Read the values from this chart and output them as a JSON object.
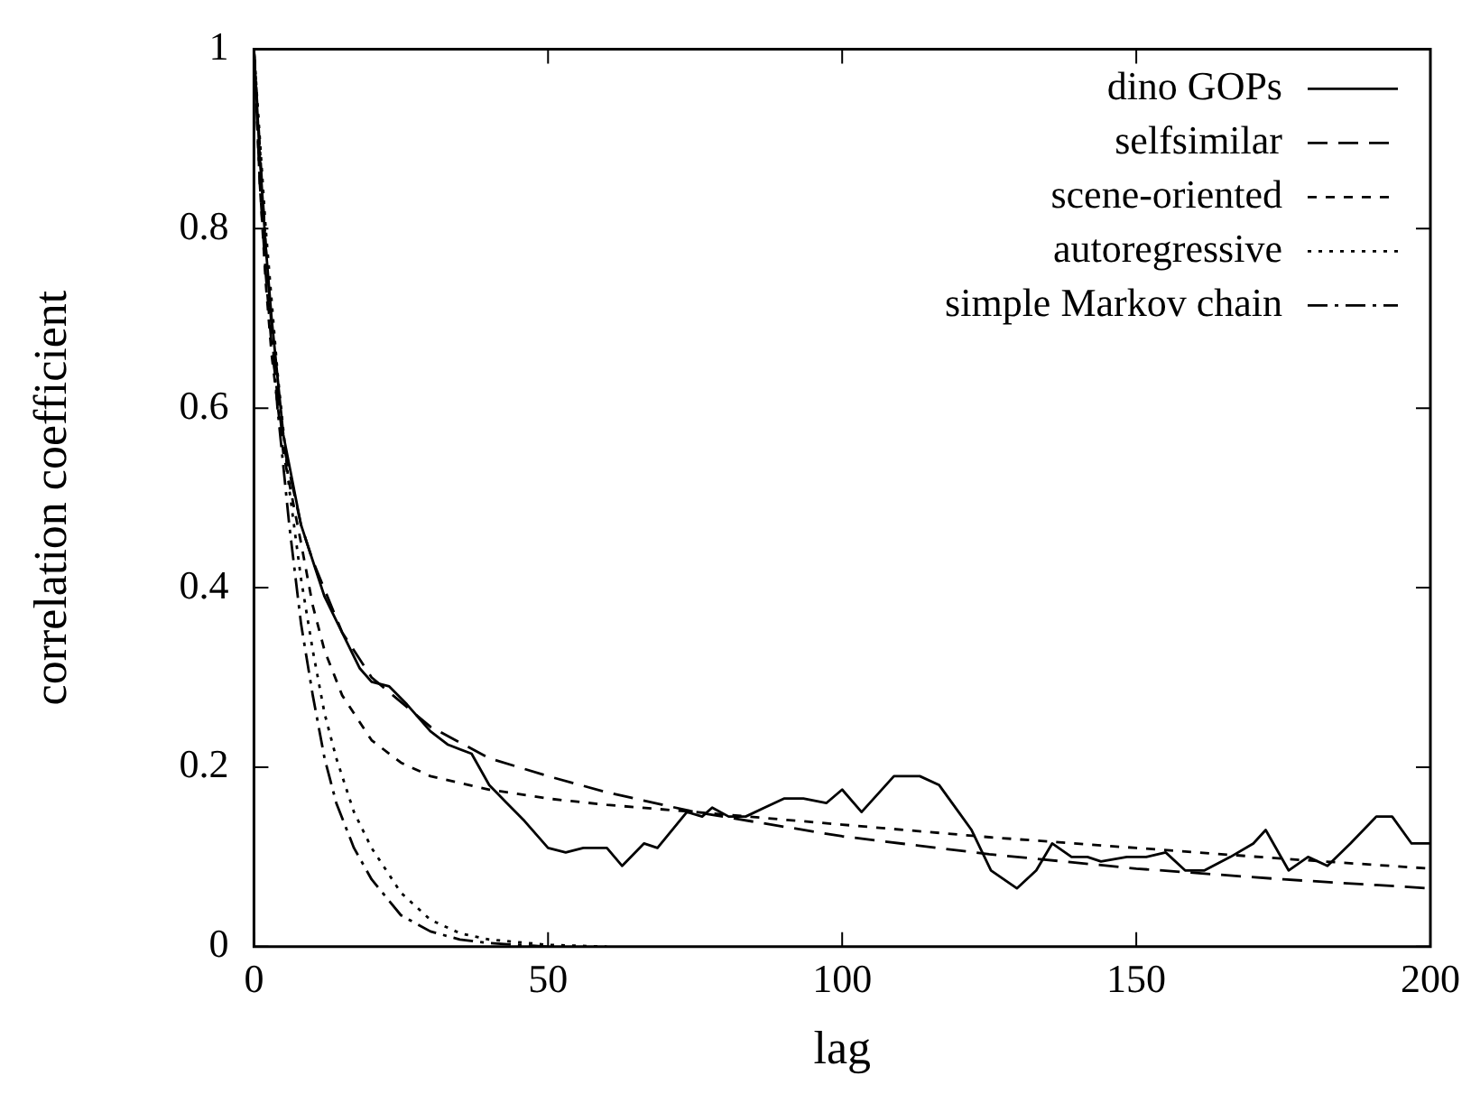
{
  "chart_data": {
    "type": "line",
    "xlabel": "lag",
    "ylabel": "correlation coefficient",
    "xlim": [
      0,
      200
    ],
    "ylim": [
      0,
      1
    ],
    "xticks": [
      0,
      50,
      100,
      150,
      200
    ],
    "yticks": [
      0,
      0.2,
      0.4,
      0.6,
      0.8,
      1
    ],
    "legend": "top right",
    "marker": "none",
    "series": [
      {
        "name": "dino GOPs",
        "color": "#000000",
        "line_style": "solid",
        "x": [
          0,
          1,
          2,
          3,
          5,
          8,
          10,
          12,
          15,
          18,
          20,
          23,
          26,
          30,
          33,
          37,
          40,
          43,
          46,
          50,
          53,
          56,
          60,
          62.6,
          66.3,
          68.6,
          73.6,
          76.2,
          77.9,
          80.7,
          83.6,
          86.8,
          90.1,
          93.4,
          97.3,
          100,
          103.3,
          108.8,
          113.2,
          116.5,
          119.8,
          122,
          125.3,
          129.7,
          133,
          135.7,
          139,
          141.7,
          144,
          148.4,
          151.7,
          155,
          158.3,
          161.6,
          166,
          169.9,
          172,
          175.9,
          179.2,
          182.5,
          186.4,
          190.8,
          193.5,
          196.8,
          200
        ],
        "values": [
          1,
          0.88,
          0.78,
          0.7,
          0.57,
          0.47,
          0.43,
          0.39,
          0.35,
          0.31,
          0.295,
          0.29,
          0.27,
          0.24,
          0.225,
          0.215,
          0.18,
          0.16,
          0.14,
          0.11,
          0.105,
          0.11,
          0.11,
          0.09,
          0.115,
          0.11,
          0.15,
          0.145,
          0.155,
          0.145,
          0.145,
          0.155,
          0.165,
          0.165,
          0.16,
          0.175,
          0.15,
          0.19,
          0.19,
          0.18,
          0.15,
          0.13,
          0.085,
          0.065,
          0.085,
          0.115,
          0.1,
          0.1,
          0.095,
          0.1,
          0.1,
          0.105,
          0.085,
          0.085,
          0.1,
          0.115,
          0.13,
          0.085,
          0.1,
          0.09,
          0.115,
          0.145,
          0.145,
          0.115,
          0.115
        ]
      },
      {
        "name": "selfsimilar",
        "color": "#000000",
        "line_style": "dashed",
        "x": [
          0,
          1,
          2,
          3,
          5,
          8,
          10,
          15,
          20,
          30,
          40,
          50,
          60,
          75,
          100,
          125,
          150,
          175,
          200
        ],
        "values": [
          1,
          0.85,
          0.75,
          0.67,
          0.56,
          0.47,
          0.43,
          0.35,
          0.3,
          0.245,
          0.21,
          0.19,
          0.172,
          0.15,
          0.123,
          0.103,
          0.087,
          0.075,
          0.065
        ]
      },
      {
        "name": "scene-oriented",
        "color": "#000000",
        "line_style": "short-dashed",
        "x": [
          0,
          1,
          2,
          3,
          5,
          8,
          10,
          12,
          15,
          20,
          25,
          30,
          40,
          50,
          60,
          75,
          100,
          125,
          150,
          175,
          200
        ],
        "values": [
          1,
          0.85,
          0.74,
          0.66,
          0.55,
          0.45,
          0.38,
          0.33,
          0.28,
          0.23,
          0.205,
          0.19,
          0.175,
          0.165,
          0.158,
          0.15,
          0.136,
          0.122,
          0.11,
          0.098,
          0.087
        ]
      },
      {
        "name": "autoregressive",
        "color": "#000000",
        "line_style": "dotted",
        "x": [
          0,
          2,
          4,
          6,
          8,
          10,
          12,
          14,
          17,
          20,
          25,
          30,
          35,
          40,
          50,
          60
        ],
        "values": [
          1,
          0.8,
          0.64,
          0.51,
          0.41,
          0.33,
          0.26,
          0.21,
          0.15,
          0.11,
          0.06,
          0.03,
          0.015,
          0.008,
          0.002,
          0
        ]
      },
      {
        "name": "simple Markov chain",
        "color": "#000000",
        "line_style": "dash-dot",
        "x": [
          0,
          2,
          4,
          6,
          8,
          10,
          12,
          14,
          17,
          20,
          25,
          30,
          35,
          40,
          50
        ],
        "values": [
          1,
          0.78,
          0.6,
          0.47,
          0.36,
          0.28,
          0.21,
          0.16,
          0.11,
          0.075,
          0.035,
          0.017,
          0.008,
          0.004,
          0
        ]
      }
    ]
  }
}
